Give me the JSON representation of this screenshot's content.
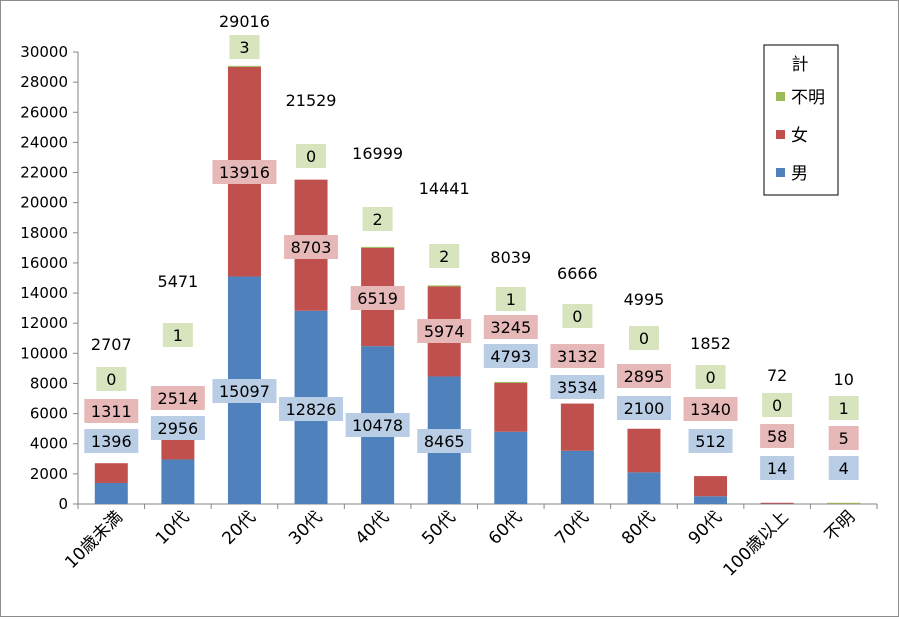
{
  "chart_data": {
    "type": "bar",
    "stacked": true,
    "title": "",
    "xlabel": "",
    "ylabel": "",
    "ylim": [
      0,
      30000
    ],
    "yticks": [
      0,
      2000,
      4000,
      6000,
      8000,
      10000,
      12000,
      14000,
      16000,
      18000,
      20000,
      22000,
      24000,
      26000,
      28000,
      30000
    ],
    "grid": false,
    "legend": {
      "title": "計",
      "position": "top-right",
      "entries": [
        "不明",
        "女",
        "男"
      ]
    },
    "categories": [
      "10歳未満",
      "10代",
      "20代",
      "30代",
      "40代",
      "50代",
      "60代",
      "70代",
      "80代",
      "90代",
      "100歳以上",
      "不明"
    ],
    "series": [
      {
        "name": "男",
        "color": "#4f81bd",
        "label_bg": "#b9cde5",
        "values": [
          1396,
          2956,
          15097,
          12826,
          10478,
          8465,
          4793,
          3534,
          2100,
          512,
          14,
          4
        ]
      },
      {
        "name": "女",
        "color": "#c0504d",
        "label_bg": "#e6b9b8",
        "values": [
          1311,
          2514,
          13916,
          8703,
          6519,
          5974,
          3245,
          3132,
          2895,
          1340,
          58,
          5
        ]
      },
      {
        "name": "不明",
        "color": "#9bbb59",
        "label_bg": "#d7e4bd",
        "values": [
          0,
          1,
          3,
          0,
          2,
          2,
          1,
          0,
          0,
          0,
          0,
          1
        ]
      }
    ],
    "totals": [
      2707,
      5471,
      29016,
      21529,
      16999,
      14441,
      8039,
      6666,
      4995,
      1852,
      72,
      10
    ]
  }
}
